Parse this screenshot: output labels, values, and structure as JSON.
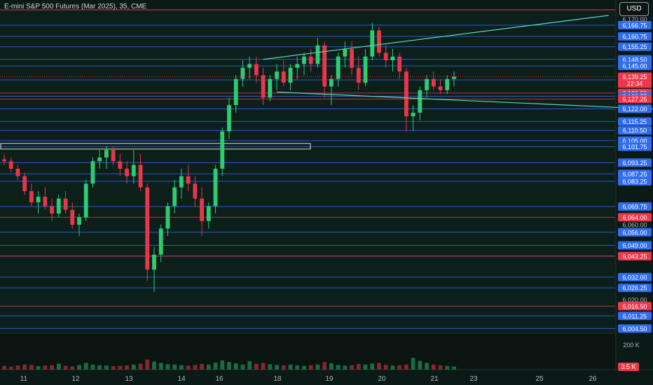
{
  "header": {
    "title": "E-mini S&P 500 Futures (Mar 2025), 35, CME",
    "currency": "USD"
  },
  "colors": {
    "background": "#0b1a16",
    "up": "#2ecc71",
    "down": "#e8364a",
    "level_blue": "#2f6cf0",
    "level_red": "#f0364a",
    "trendline": "#5fd6c4",
    "axis_text": "#b2b5be"
  },
  "chart_data": {
    "type": "candlestick",
    "symbol": "E-mini S&P 500 Futures (Mar 2025)",
    "interval": "35",
    "exchange": "CME",
    "currency": "USD",
    "y_range": [
      6002,
      6175
    ],
    "grid": false,
    "x_ticks": [
      "11",
      "12",
      "13",
      "14",
      "16",
      "18",
      "19",
      "20",
      "21",
      "23",
      "25",
      "26"
    ],
    "last_price": 6139.25,
    "countdown": "22:34",
    "y_tick_labels": [
      "6,170.00",
      "6,020.00",
      "6,060.00"
    ],
    "price_levels": [
      {
        "value": 6166.75,
        "label": "6,166.75",
        "color": "blue"
      },
      {
        "value": 6160.75,
        "label": "6,160.75",
        "color": "blue"
      },
      {
        "value": 6155.25,
        "label": "6,155.25",
        "color": "blue"
      },
      {
        "value": 6148.5,
        "label": "6,148.50",
        "color": "blue"
      },
      {
        "value": 6145.0,
        "label": "6,145.00",
        "color": "blue"
      },
      {
        "value": 6137.5,
        "label": "6,137.50",
        "color": "blue"
      },
      {
        "value": 6130.5,
        "label": "6,130.50",
        "color": "red"
      },
      {
        "value": 6128.75,
        "label": "6,128.75",
        "color": "blue"
      },
      {
        "value": 6127.25,
        "label": "6,127.25",
        "color": "red"
      },
      {
        "value": 6122.0,
        "label": "6,122.00",
        "color": "blue"
      },
      {
        "value": 6115.25,
        "label": "6,115.25",
        "color": "blue"
      },
      {
        "value": 6110.5,
        "label": "6,110.50",
        "color": "blue"
      },
      {
        "value": 6105.0,
        "label": "6,105.00",
        "color": "blue"
      },
      {
        "value": 6101.75,
        "label": "6,101.75",
        "color": "blue"
      },
      {
        "value": 6093.25,
        "label": "6,093.25",
        "color": "blue"
      },
      {
        "value": 6087.25,
        "label": "6,087.25",
        "color": "blue"
      },
      {
        "value": 6083.25,
        "label": "6,083.25",
        "color": "blue"
      },
      {
        "value": 6069.75,
        "label": "6,069.75",
        "color": "blue"
      },
      {
        "value": 6064.0,
        "label": "6,064.00",
        "color": "red"
      },
      {
        "value": 6056.0,
        "label": "6,056.00",
        "color": "blue"
      },
      {
        "value": 6049.0,
        "label": "6,049.00",
        "color": "blue"
      },
      {
        "value": 6043.25,
        "label": "6,043.25",
        "color": "blue"
      },
      {
        "value": 6043.25,
        "label": "6,043.25",
        "color": "red"
      },
      {
        "value": 6032.0,
        "label": "6,032.00",
        "color": "blue"
      },
      {
        "value": 6026.25,
        "label": "6,026.25",
        "color": "blue"
      },
      {
        "value": 6016.5,
        "label": "6,016.50",
        "color": "red"
      },
      {
        "value": 6011.25,
        "label": "6,011.25",
        "color": "blue"
      },
      {
        "value": 6004.5,
        "label": "6,004.50",
        "color": "blue"
      }
    ],
    "volume_axis": {
      "top_label": "200 K",
      "last_label": "3.5 K"
    },
    "candles": [
      {
        "x": "11",
        "o": 6095,
        "h": 6098,
        "l": 6092,
        "c": 6094
      },
      {
        "x": "11",
        "o": 6094,
        "h": 6096,
        "l": 6088,
        "c": 6090
      },
      {
        "x": "11",
        "o": 6090,
        "h": 6092,
        "l": 6084,
        "c": 6086
      },
      {
        "x": "11",
        "o": 6086,
        "h": 6088,
        "l": 6076,
        "c": 6078
      },
      {
        "x": "11",
        "o": 6078,
        "h": 6082,
        "l": 6070,
        "c": 6072
      },
      {
        "x": "11",
        "o": 6072,
        "h": 6078,
        "l": 6066,
        "c": 6075
      },
      {
        "x": "11",
        "o": 6075,
        "h": 6080,
        "l": 6068,
        "c": 6070
      },
      {
        "x": "11",
        "o": 6070,
        "h": 6074,
        "l": 6062,
        "c": 6066
      },
      {
        "x": "11",
        "o": 6066,
        "h": 6076,
        "l": 6064,
        "c": 6074
      },
      {
        "x": "11",
        "o": 6074,
        "h": 6078,
        "l": 6066,
        "c": 6068
      },
      {
        "x": "11",
        "o": 6068,
        "h": 6072,
        "l": 6058,
        "c": 6060
      },
      {
        "x": "11",
        "o": 6060,
        "h": 6066,
        "l": 6054,
        "c": 6064
      },
      {
        "x": "11",
        "o": 6064,
        "h": 6084,
        "l": 6062,
        "c": 6082
      },
      {
        "x": "11",
        "o": 6082,
        "h": 6096,
        "l": 6080,
        "c": 6094
      },
      {
        "x": "11",
        "o": 6094,
        "h": 6100,
        "l": 6090,
        "c": 6096
      },
      {
        "x": "12",
        "o": 6096,
        "h": 6102,
        "l": 6090,
        "c": 6100
      },
      {
        "x": "12",
        "o": 6100,
        "h": 6102,
        "l": 6092,
        "c": 6094
      },
      {
        "x": "12",
        "o": 6094,
        "h": 6098,
        "l": 6086,
        "c": 6090
      },
      {
        "x": "12",
        "o": 6090,
        "h": 6094,
        "l": 6082,
        "c": 6086
      },
      {
        "x": "12",
        "o": 6086,
        "h": 6100,
        "l": 6082,
        "c": 6092
      },
      {
        "x": "12",
        "o": 6092,
        "h": 6098,
        "l": 6078,
        "c": 6080
      },
      {
        "x": "12",
        "o": 6080,
        "h": 6082,
        "l": 6030,
        "c": 6036
      },
      {
        "x": "12",
        "o": 6036,
        "h": 6048,
        "l": 6024,
        "c": 6044
      },
      {
        "x": "12",
        "o": 6044,
        "h": 6060,
        "l": 6040,
        "c": 6058
      },
      {
        "x": "12",
        "o": 6058,
        "h": 6072,
        "l": 6054,
        "c": 6070
      },
      {
        "x": "12",
        "o": 6070,
        "h": 6084,
        "l": 6066,
        "c": 6080
      },
      {
        "x": "12",
        "o": 6080,
        "h": 6090,
        "l": 6074,
        "c": 6086
      },
      {
        "x": "12",
        "o": 6086,
        "h": 6092,
        "l": 6078,
        "c": 6082
      },
      {
        "x": "12",
        "o": 6082,
        "h": 6086,
        "l": 6070,
        "c": 6074
      },
      {
        "x": "13",
        "o": 6074,
        "h": 6080,
        "l": 6054,
        "c": 6062
      },
      {
        "x": "13",
        "o": 6062,
        "h": 6072,
        "l": 6058,
        "c": 6070
      },
      {
        "x": "13",
        "o": 6070,
        "h": 6092,
        "l": 6066,
        "c": 6090
      },
      {
        "x": "13",
        "o": 6090,
        "h": 6112,
        "l": 6086,
        "c": 6110
      },
      {
        "x": "13",
        "o": 6110,
        "h": 6128,
        "l": 6106,
        "c": 6124
      },
      {
        "x": "13",
        "o": 6124,
        "h": 6140,
        "l": 6120,
        "c": 6138
      },
      {
        "x": "13",
        "o": 6138,
        "h": 6148,
        "l": 6134,
        "c": 6144
      },
      {
        "x": "14",
        "o": 6144,
        "h": 6150,
        "l": 6138,
        "c": 6146
      },
      {
        "x": "14",
        "o": 6146,
        "h": 6150,
        "l": 6136,
        "c": 6140
      },
      {
        "x": "14",
        "o": 6140,
        "h": 6144,
        "l": 6124,
        "c": 6128
      },
      {
        "x": "14",
        "o": 6128,
        "h": 6140,
        "l": 6126,
        "c": 6138
      },
      {
        "x": "16",
        "o": 6138,
        "h": 6146,
        "l": 6132,
        "c": 6142
      },
      {
        "x": "16",
        "o": 6142,
        "h": 6148,
        "l": 6134,
        "c": 6136
      },
      {
        "x": "16",
        "o": 6136,
        "h": 6146,
        "l": 6132,
        "c": 6144
      },
      {
        "x": "16",
        "o": 6144,
        "h": 6150,
        "l": 6138,
        "c": 6146
      },
      {
        "x": "16",
        "o": 6146,
        "h": 6152,
        "l": 6140,
        "c": 6150
      },
      {
        "x": "16",
        "o": 6150,
        "h": 6154,
        "l": 6142,
        "c": 6146
      },
      {
        "x": "18",
        "o": 6146,
        "h": 6160,
        "l": 6144,
        "c": 6156
      },
      {
        "x": "18",
        "o": 6156,
        "h": 6158,
        "l": 6128,
        "c": 6134
      },
      {
        "x": "18",
        "o": 6134,
        "h": 6140,
        "l": 6124,
        "c": 6138
      },
      {
        "x": "18",
        "o": 6138,
        "h": 6152,
        "l": 6134,
        "c": 6150
      },
      {
        "x": "19",
        "o": 6150,
        "h": 6158,
        "l": 6144,
        "c": 6154
      },
      {
        "x": "19",
        "o": 6154,
        "h": 6158,
        "l": 6140,
        "c": 6144
      },
      {
        "x": "19",
        "o": 6144,
        "h": 6150,
        "l": 6132,
        "c": 6136
      },
      {
        "x": "19",
        "o": 6136,
        "h": 6154,
        "l": 6134,
        "c": 6150
      },
      {
        "x": "19",
        "o": 6150,
        "h": 6168,
        "l": 6148,
        "c": 6164
      },
      {
        "x": "19",
        "o": 6164,
        "h": 6166,
        "l": 6150,
        "c": 6152
      },
      {
        "x": "20",
        "o": 6152,
        "h": 6156,
        "l": 6144,
        "c": 6148
      },
      {
        "x": "20",
        "o": 6148,
        "h": 6154,
        "l": 6142,
        "c": 6150
      },
      {
        "x": "20",
        "o": 6150,
        "h": 6152,
        "l": 6138,
        "c": 6142
      },
      {
        "x": "20",
        "o": 6142,
        "h": 6144,
        "l": 6110,
        "c": 6118
      },
      {
        "x": "20",
        "o": 6118,
        "h": 6124,
        "l": 6110,
        "c": 6120
      },
      {
        "x": "20",
        "o": 6120,
        "h": 6134,
        "l": 6116,
        "c": 6132
      },
      {
        "x": "21",
        "o": 6132,
        "h": 6140,
        "l": 6128,
        "c": 6138
      },
      {
        "x": "21",
        "o": 6138,
        "h": 6142,
        "l": 6132,
        "c": 6134
      },
      {
        "x": "21",
        "o": 6134,
        "h": 6138,
        "l": 6130,
        "c": 6132
      },
      {
        "x": "21",
        "o": 6132,
        "h": 6140,
        "l": 6130,
        "c": 6138
      },
      {
        "x": "21",
        "o": 6138,
        "h": 6142,
        "l": 6134,
        "c": 6139.25
      }
    ],
    "volumes_k": [
      22,
      18,
      25,
      30,
      28,
      20,
      24,
      26,
      35,
      22,
      19,
      27,
      40,
      30,
      26,
      24,
      21,
      23,
      25,
      30,
      35,
      60,
      48,
      40,
      32,
      30,
      26,
      24,
      28,
      34,
      30,
      42,
      55,
      45,
      38,
      30,
      50,
      35,
      40,
      32,
      28,
      26,
      30,
      24,
      22,
      26,
      30,
      45,
      38,
      28,
      24,
      26,
      34,
      30,
      36,
      40,
      28,
      24,
      26,
      30,
      70,
      52,
      40,
      30,
      26,
      22,
      18
    ]
  }
}
